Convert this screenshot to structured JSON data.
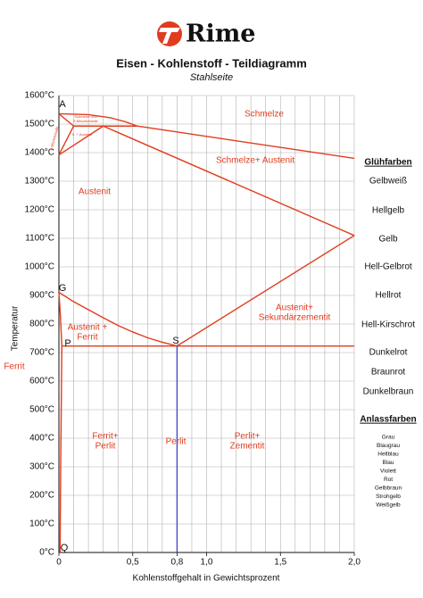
{
  "header": {
    "brand": "Rime"
  },
  "chart_data": {
    "type": "line",
    "title": "Eisen - Kohlenstoff - Teildiagramm",
    "subtitle": "Stahlseite",
    "xlabel": "Kohlenstoffgehalt in Gewichtsprozent",
    "ylabel": "Temperatur",
    "xlim": [
      0,
      2.0
    ],
    "ylim": [
      0,
      1600
    ],
    "xticks": [
      0,
      {
        "value": 0.5,
        "label": "0,5"
      },
      {
        "value": 0.8,
        "label": "0,8"
      },
      {
        "value": 1.0,
        "label": "1,0"
      },
      {
        "value": 1.5,
        "label": "1,5"
      },
      {
        "value": 2.0,
        "label": "2,0"
      }
    ],
    "xgrid": [
      0.1,
      0.2,
      0.3,
      0.4,
      0.5,
      0.6,
      0.7,
      0.8,
      0.9,
      1.0,
      1.1,
      1.2,
      1.3,
      1.4,
      1.5,
      1.6,
      1.7,
      1.8,
      1.9,
      2.0
    ],
    "yticks": [
      {
        "value": 0,
        "label": "0°C"
      },
      {
        "value": 100,
        "label": "100°C"
      },
      {
        "value": 200,
        "label": "200°C"
      },
      {
        "value": 300,
        "label": "300°C"
      },
      {
        "value": 400,
        "label": "400°C"
      },
      {
        "value": 500,
        "label": "500°C"
      },
      {
        "value": 600,
        "label": "600°C"
      },
      {
        "value": 700,
        "label": "700°C"
      },
      {
        "value": 800,
        "label": "800°C"
      },
      {
        "value": 900,
        "label": "900°C"
      },
      {
        "value": 1000,
        "label": "1000°C"
      },
      {
        "value": 1100,
        "label": "1100°C"
      },
      {
        "value": 1200,
        "label": "1200°C"
      },
      {
        "value": 1300,
        "label": "1300°C"
      },
      {
        "value": 1400,
        "label": "1400°C"
      },
      {
        "value": 1500,
        "label": "1500°C"
      },
      {
        "value": 1600,
        "label": "1600°C"
      }
    ],
    "grid": true,
    "series": [
      {
        "color": "#e03c1e",
        "x": [
          0,
          0.2,
          0.35,
          0.45,
          0.53
        ],
        "values": [
          1536,
          1533,
          1522,
          1508,
          1493
        ]
      },
      {
        "color": "#e03c1e",
        "x": [
          0.53,
          2.0
        ],
        "values": [
          1493,
          1380
        ]
      },
      {
        "color": "#e03c1e",
        "x": [
          0.1,
          0.53
        ],
        "values": [
          1493,
          1493
        ]
      },
      {
        "color": "#e03c1e",
        "x": [
          0,
          0.1
        ],
        "values": [
          1536,
          1493
        ]
      },
      {
        "color": "#e03c1e",
        "x": [
          0.1,
          0
        ],
        "values": [
          1493,
          1392
        ]
      },
      {
        "color": "#e03c1e",
        "x": [
          0,
          0.3
        ],
        "values": [
          1392,
          1493
        ]
      },
      {
        "color": "#e03c1e",
        "x": [
          0.3,
          2.0
        ],
        "values": [
          1493,
          1110
        ]
      },
      {
        "color": "#e03c1e",
        "x": [
          0.8,
          2.0
        ],
        "values": [
          723,
          1110
        ]
      },
      {
        "color": "#e03c1e",
        "x": [
          0,
          0.1,
          0.2,
          0.3,
          0.4,
          0.5,
          0.6,
          0.7,
          0.8
        ],
        "values": [
          911,
          878,
          850,
          822,
          795,
          772,
          752,
          736,
          723
        ]
      },
      {
        "color": "#e03c1e",
        "x": [
          0,
          0.01,
          0.02
        ],
        "values": [
          911,
          830,
          723
        ]
      },
      {
        "color": "#e03c1e",
        "x": [
          0.02,
          2.0
        ],
        "values": [
          723,
          723
        ]
      },
      {
        "color": "#e03c1e",
        "x": [
          0.02,
          0.012,
          0.008
        ],
        "values": [
          723,
          300,
          0
        ]
      },
      {
        "color": "#4a4ac8",
        "x": [
          0.8,
          0.8
        ],
        "values": [
          0,
          723
        ]
      }
    ],
    "regions": [
      [
        "Schmelze"
      ],
      [
        "Schmelze+ Austenit"
      ],
      [
        "Austenit"
      ],
      [
        "Austenit+",
        "Sekundärzementit"
      ],
      [
        "Austenit +",
        "Ferrit"
      ],
      [
        "Ferrit"
      ],
      [
        "Ferrit+",
        "Perlit"
      ],
      [
        "Perlit"
      ],
      [
        "Perlit+",
        "Zementit"
      ],
      [
        "Schmelze und",
        "δ-Mischkristalle"
      ],
      [
        "δ- + Austenit"
      ],
      [
        "δ-Mischkristalle"
      ]
    ],
    "points": [
      "A",
      "G",
      "P",
      "S",
      "Q"
    ]
  },
  "gluehfarben": {
    "title": "Glühfarben",
    "items": [
      "Gelbweiß",
      "Hellgelb",
      "Gelb",
      "Hell-Gelbrot",
      "Hellrot",
      "Hell-Kirschrot",
      "Dunkelrot",
      "Braunrot",
      "Dunkelbraun"
    ]
  },
  "anlassfarben": {
    "title": "Anlassfarben",
    "items": [
      "Grau",
      "Blaugrau",
      "Hellblau",
      "Blau",
      "Violett",
      "Rot",
      "Gelbbraun",
      "Strohgelb",
      "Weißgelb"
    ]
  }
}
